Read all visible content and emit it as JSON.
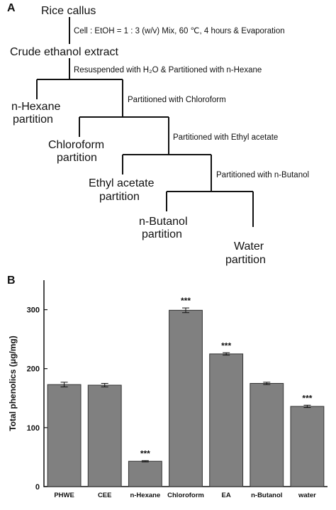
{
  "panel_a": {
    "label": "A",
    "nodes": [
      {
        "lines": [
          "Rice callus"
        ]
      },
      {
        "lines": [
          "Crude ethanol extract"
        ]
      },
      {
        "lines": [
          "n-Hexane",
          "partition"
        ]
      },
      {
        "lines": [
          "Chloroform",
          "partition"
        ]
      },
      {
        "lines": [
          "Ethyl acetate",
          "partition"
        ]
      },
      {
        "lines": [
          "n-Butanol",
          "partition"
        ]
      },
      {
        "lines": [
          "Water",
          "partition"
        ]
      }
    ],
    "edges": [
      {
        "label": "Cell : EtOH = 1 : 3 (w/v) Mix, 60 ℃, 4 hours & Evaporation"
      },
      {
        "label": "Resuspended with H₂O & Partitioned with n-Hexane"
      },
      {
        "label": "Partitioned with Chloroform"
      },
      {
        "label": "Partitioned with Ethyl acetate"
      },
      {
        "label": "Partitioned with n-Butanol"
      }
    ]
  },
  "chart_data": {
    "type": "bar",
    "panel_label": "B",
    "y_label": "Total phenolics (μg/mg)",
    "categories": [
      "PHWE",
      "CEE",
      "n-Hexane",
      "Chloroform",
      "EA",
      "n-Butanol",
      "water"
    ],
    "values": [
      173,
      172,
      43,
      299,
      225,
      175,
      136
    ],
    "errors": [
      4,
      3,
      1,
      4,
      2,
      2,
      2
    ],
    "significance": [
      null,
      null,
      "***",
      "***",
      "***",
      null,
      "***"
    ],
    "color": "#808080",
    "ylim": [
      0,
      350
    ],
    "yticks": [
      0,
      100,
      200,
      300
    ]
  }
}
